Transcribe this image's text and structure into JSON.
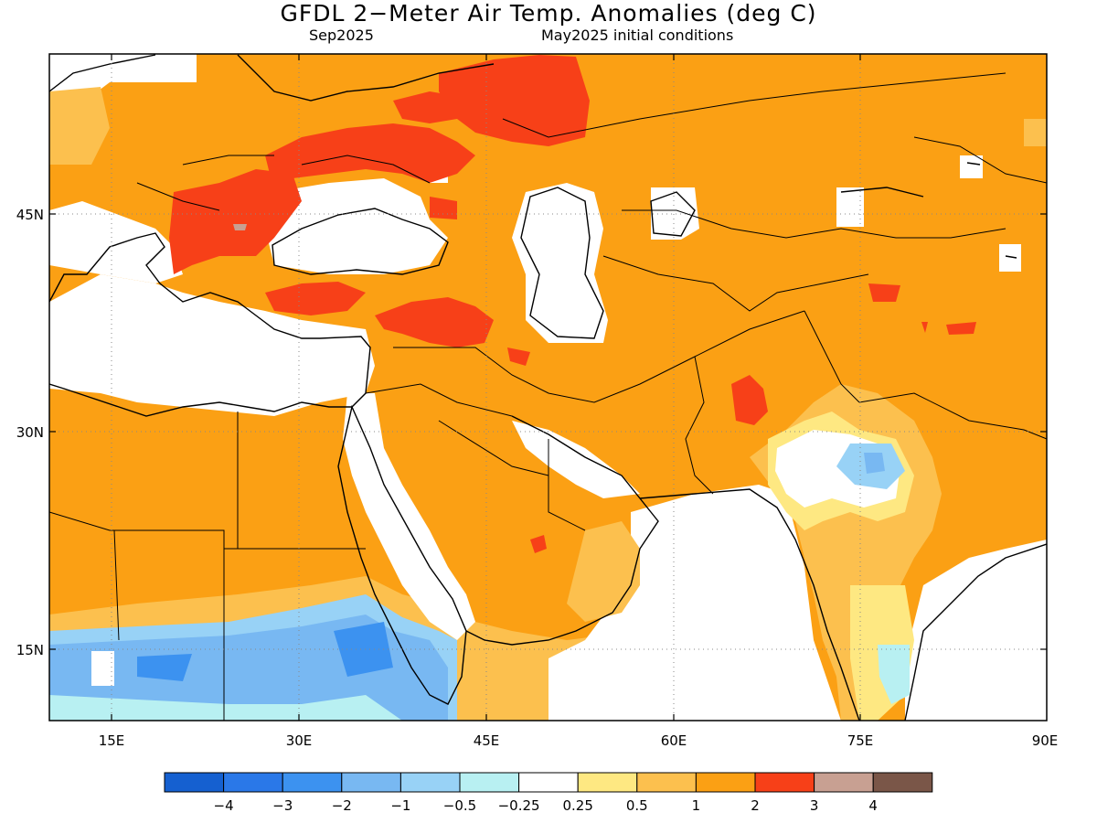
{
  "title": "GFDL 2−Meter Air Temp. Anomalies (deg C)",
  "subtitle_left": "Sep2025",
  "subtitle_right": "May2025 initial conditions",
  "axes": {
    "lon_labels": [
      "15E",
      "30E",
      "45E",
      "60E",
      "75E",
      "90E"
    ],
    "lat_labels": [
      "45N",
      "30N",
      "15N"
    ]
  },
  "colorbar": {
    "colors": [
      "#1560d0",
      "#2a78e8",
      "#3c92f0",
      "#78b8f2",
      "#98d2f6",
      "#b8f0f2",
      "#ffffff",
      "#fee882",
      "#fcc04e",
      "#fba014",
      "#f74018",
      "#c8a092",
      "#7a5648"
    ],
    "labels": [
      "−4",
      "−3",
      "−2",
      "−1",
      "−0.5",
      "−0.25",
      "0.25",
      "0.5",
      "1",
      "2",
      "3",
      "4"
    ]
  },
  "legend_units": "deg C"
}
